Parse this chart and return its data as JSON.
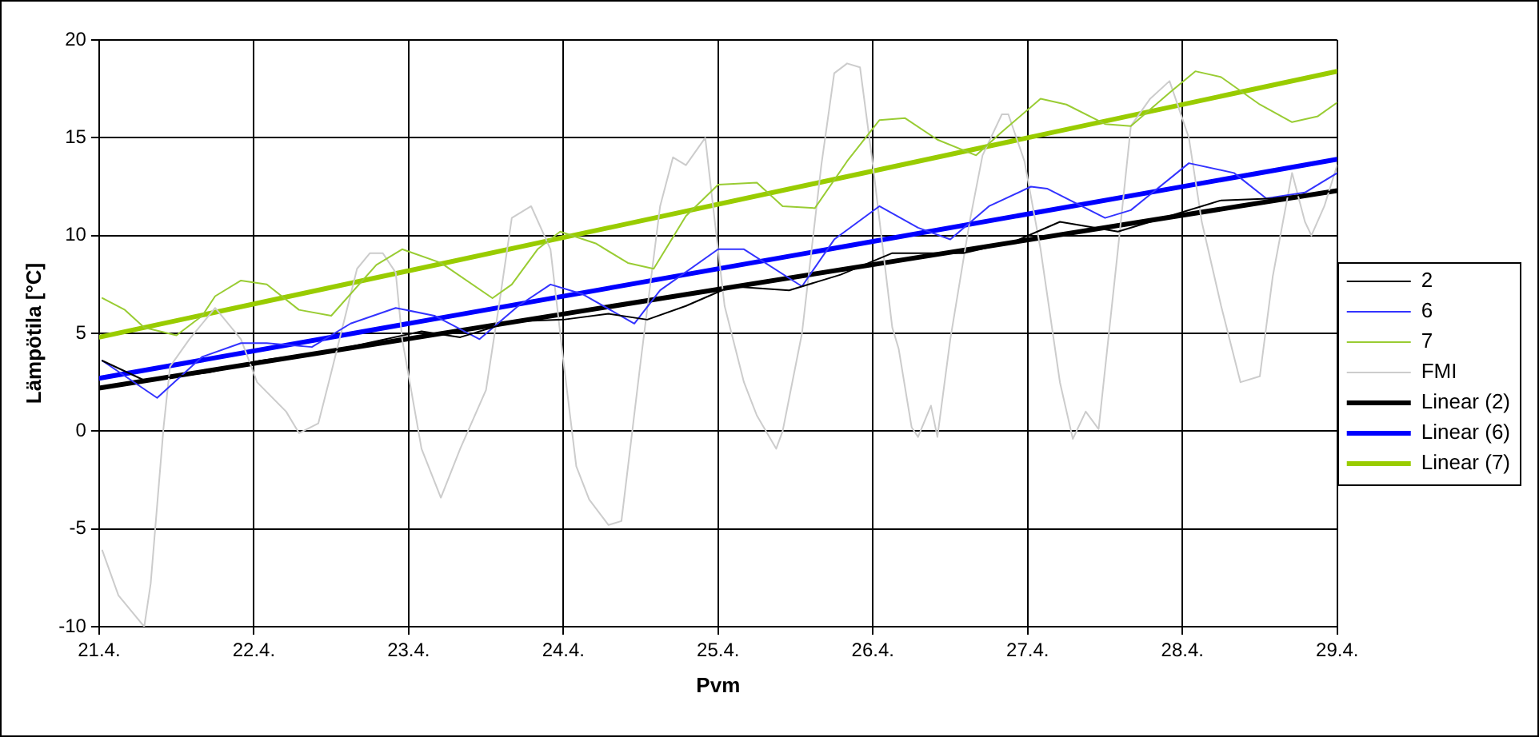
{
  "chart_data": {
    "type": "line",
    "xlabel": "Pvm",
    "ylabel": "Lämpötila [°C]",
    "xlim": [
      "--04-21",
      "--04-29"
    ],
    "xticks": [
      {
        "value": "--04-21",
        "label": "21.4."
      },
      {
        "value": "--04-22",
        "label": "22.4."
      },
      {
        "value": "--04-23",
        "label": "23.4."
      },
      {
        "value": "--04-24",
        "label": "24.4."
      },
      {
        "value": "--04-25",
        "label": "25.4."
      },
      {
        "value": "--04-26",
        "label": "26.4."
      },
      {
        "value": "--04-27",
        "label": "27.4."
      },
      {
        "value": "--04-28",
        "label": "28.4."
      },
      {
        "value": "--04-29",
        "label": "29.4."
      }
    ],
    "ylim": [
      -10,
      20
    ],
    "yticks": [
      -10,
      -5,
      0,
      5,
      10,
      15,
      20
    ],
    "grid": true,
    "legend": "right",
    "marker": "none",
    "line_style": "solid",
    "series": [
      {
        "name": "2",
        "color": "#000000",
        "x": [
          "--04-21T00:30",
          "--04-21T07:00",
          "--04-21T17:00",
          "--04-22T01:00",
          "--04-22T12:00",
          "--04-23T02:00",
          "--04-23T08:00",
          "--04-23T16:00",
          "--04-24T00:00",
          "--04-24T07:00",
          "--04-24T13:00",
          "--04-24T19:00",
          "--04-25T02:00",
          "--04-25T11:00",
          "--04-25T19:00",
          "--04-26T03:00",
          "--04-26T07:00",
          "--04-26T14:00",
          "--04-26T22:00",
          "--04-27T05:00",
          "--04-27T14:00",
          "--04-27T22:00",
          "--04-28T06:00",
          "--04-28T14:00",
          "--04-29T00:00"
        ],
        "values": [
          3.6,
          2.6,
          3.0,
          3.6,
          4.1,
          5.1,
          4.8,
          5.6,
          5.7,
          6.0,
          5.7,
          6.4,
          7.4,
          7.2,
          8.0,
          9.1,
          9.1,
          9.1,
          9.7,
          10.7,
          10.2,
          11.0,
          11.8,
          11.9,
          12.3
        ]
      },
      {
        "name": "6",
        "color": "#3333ff",
        "x": [
          "--04-21T00:30",
          "--04-21T09:00",
          "--04-21T16:00",
          "--04-21T22:00",
          "--04-22T02:00",
          "--04-22T09:00",
          "--04-22T15:00",
          "--04-22T22:00",
          "--04-23T04:00",
          "--04-23T11:00",
          "--04-23T17:00",
          "--04-23T22:00",
          "--04-24T03:00",
          "--04-24T11:00",
          "--04-24T15:00",
          "--04-25T00:00",
          "--04-25T04:00",
          "--04-25T13:00",
          "--04-25T18:00",
          "--04-26T01:00",
          "--04-26T07:00",
          "--04-26T12:00",
          "--04-26T18:00",
          "--04-27T00:30",
          "--04-27T03:00",
          "--04-27T12:00",
          "--04-27T16:00",
          "--04-28T01:00",
          "--04-28T08:00",
          "--04-28T13:00",
          "--04-28T19:00",
          "--04-29T00:00"
        ],
        "values": [
          3.6,
          1.7,
          3.8,
          4.5,
          4.5,
          4.3,
          5.5,
          6.3,
          5.9,
          4.7,
          6.4,
          7.5,
          7.0,
          5.5,
          7.2,
          9.3,
          9.3,
          7.4,
          9.8,
          11.5,
          10.4,
          9.8,
          11.5,
          12.5,
          12.4,
          10.9,
          11.3,
          13.7,
          13.2,
          11.9,
          12.2,
          13.2
        ]
      },
      {
        "name": "7",
        "color": "#99cc33",
        "x": [
          "--04-21T00:30",
          "--04-21T04:00",
          "--04-21T07:00",
          "--04-21T12:00",
          "--04-21T16:00",
          "--04-21T18:00",
          "--04-21T22:00",
          "--04-22T02:00",
          "--04-22T07:00",
          "--04-22T12:00",
          "--04-22T19:00",
          "--04-22T23:00",
          "--04-23T05:00",
          "--04-23T13:00",
          "--04-23T16:00",
          "--04-23T20:00",
          "--04-23T23:30",
          "--04-24T05:00",
          "--04-24T10:00",
          "--04-24T14:00",
          "--04-24T19:00",
          "--04-25T00:00",
          "--04-25T06:00",
          "--04-25T10:00",
          "--04-25T15:00",
          "--04-25T20:00",
          "--04-26T01:00",
          "--04-26T05:00",
          "--04-26T10:00",
          "--04-26T16:00",
          "--04-26T20:00",
          "--04-27T02:00",
          "--04-27T06:00",
          "--04-27T12:00",
          "--04-27T16:00",
          "--04-27T22:00",
          "--04-28T02:00",
          "--04-28T06:00",
          "--04-28T12:00",
          "--04-28T17:00",
          "--04-28T21:00",
          "--04-29T00:00"
        ],
        "values": [
          6.8,
          6.2,
          5.3,
          4.9,
          5.9,
          6.9,
          7.7,
          7.5,
          6.2,
          5.9,
          8.5,
          9.3,
          8.6,
          6.8,
          7.5,
          9.3,
          10.2,
          9.6,
          8.6,
          8.3,
          11.0,
          12.6,
          12.7,
          11.5,
          11.4,
          13.8,
          15.9,
          16.0,
          14.9,
          14.1,
          15.3,
          17.0,
          16.7,
          15.7,
          15.6,
          17.3,
          18.4,
          18.1,
          16.7,
          15.8,
          16.1,
          16.8
        ]
      },
      {
        "name": "FMI",
        "color": "#cccccc",
        "x": [
          "--04-21T00:30",
          "--04-21T03:00",
          "--04-21T07:00",
          "--04-21T08:00",
          "--04-21T10:00",
          "--04-21T11:00",
          "--04-21T14:00",
          "--04-21T18:00",
          "--04-21T22:00",
          "--04-22T00:30",
          "--04-22T05:00",
          "--04-22T07:00",
          "--04-22T10:00",
          "--04-22T12:00",
          "--04-22T16:00",
          "--04-22T18:00",
          "--04-22T20:00",
          "--04-22T22:00",
          "--04-22T23:00",
          "--04-23T02:00",
          "--04-23T05:00",
          "--04-23T08:00",
          "--04-23T12:00",
          "--04-23T14:00",
          "--04-23T16:00",
          "--04-23T19:00",
          "--04-23T22:00",
          "--04-24T00:00",
          "--04-24T02:00",
          "--04-24T04:00",
          "--04-24T07:00",
          "--04-24T09:00",
          "--04-24T12:00",
          "--04-24T15:00",
          "--04-24T17:00",
          "--04-24T19:00",
          "--04-24T22:00",
          "--04-24T23:00",
          "--04-25T01:00",
          "--04-25T04:00",
          "--04-25T06:00",
          "--04-25T09:00",
          "--04-25T10:00",
          "--04-25T13:00",
          "--04-25T16:00",
          "--04-25T18:00",
          "--04-25T20:00",
          "--04-25T22:00",
          "--04-26T00:00",
          "--04-26T03:00",
          "--04-26T04:00",
          "--04-26T06:00",
          "--04-26T07:00",
          "--04-26T09:00",
          "--04-26T10:00",
          "--04-26T12:00",
          "--04-26T15:00",
          "--04-26T17:00",
          "--04-26T20:00",
          "--04-26T21:00",
          "--04-26T23:30",
          "--04-27T02:00",
          "--04-27T05:00",
          "--04-27T07:00",
          "--04-27T09:00",
          "--04-27T11:00",
          "--04-27T14:00",
          "--04-27T16:00",
          "--04-27T19:00",
          "--04-27T22:00",
          "--04-28T01:00",
          "--04-28T03:00",
          "--04-28T06:00",
          "--04-28T09:00",
          "--04-28T12:00",
          "--04-28T14:00",
          "--04-28T17:00",
          "--04-28T19:00",
          "--04-28T20:00",
          "--04-28T22:00",
          "--04-29T00:00"
        ],
        "values": [
          -6.1,
          -8.4,
          -10,
          -7.8,
          0.2,
          3.3,
          4.7,
          6.3,
          4.7,
          2.5,
          1.0,
          -0.1,
          0.4,
          3.0,
          8.3,
          9.1,
          9.1,
          8.1,
          4.7,
          -0.9,
          -3.4,
          -0.9,
          2.1,
          6.4,
          10.9,
          11.5,
          9.3,
          3.6,
          -1.8,
          -3.5,
          -4.8,
          -4.6,
          3.6,
          11.5,
          14.0,
          13.6,
          15.0,
          12.1,
          6.4,
          2.5,
          0.8,
          -0.9,
          0,
          5.0,
          13.6,
          18.3,
          18.8,
          18.6,
          13.6,
          5.3,
          4.2,
          0.2,
          -0.3,
          1.3,
          -0.3,
          4.7,
          10.7,
          14.1,
          16.2,
          16.2,
          13.8,
          9.3,
          2.5,
          -0.4,
          1.0,
          0.1,
          9.3,
          15.6,
          17.0,
          17.9,
          15.0,
          10.7,
          6.4,
          2.5,
          2.8,
          7.9,
          13.2,
          10.7,
          10.0,
          11.5,
          13.6
        ]
      },
      {
        "name": "Linear (2)",
        "color": "#000000",
        "x": [
          "--04-21",
          "--04-29"
        ],
        "values": [
          2.2,
          12.3
        ]
      },
      {
        "name": "Linear (6)",
        "color": "#0000ff",
        "x": [
          "--04-21",
          "--04-29"
        ],
        "values": [
          2.7,
          13.9
        ]
      },
      {
        "name": "Linear (7)",
        "color": "#99cc00",
        "x": [
          "--04-21",
          "--04-29"
        ],
        "values": [
          4.8,
          18.4
        ]
      }
    ]
  }
}
